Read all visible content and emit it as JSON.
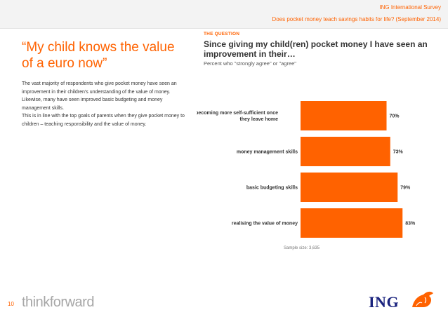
{
  "header": {
    "survey_name": "ING International Survey",
    "survey_question": "Does pocket money teach savings habits for life? (September 2014)"
  },
  "left": {
    "quote": "“My child knows the value of a euro now”",
    "paragraphs": [
      "The vast majority of respondents who give pocket money have seen an improvement in their children’s understanding of the value of money.",
      "Likewise, many have seen improved basic budgeting and money management skills.",
      "This is in line with the top goals of parents when they give pocket money to children – teaching responsibility and the value of money."
    ]
  },
  "question": {
    "label": "THE QUESTION",
    "title": "Since giving my child(ren) pocket money I have seen an improvement in their…",
    "subtitle": "Percent who \"strongly agree\" or \"agree\""
  },
  "chart_data": {
    "type": "bar",
    "orientation": "horizontal",
    "categories": [
      "becoming more self-sufficient once they leave home",
      "money management skills",
      "basic budgeting skills",
      "realising the value of money"
    ],
    "values": [
      70,
      73,
      79,
      83
    ],
    "value_labels": [
      "70%",
      "73%",
      "79%",
      "83%"
    ],
    "unit": "%",
    "xlim": [
      0,
      100
    ],
    "bar_color": "#ff6200",
    "grid": false
  },
  "footer": {
    "sample_size": "Sample size: 3,635",
    "page_number": "10",
    "tagline": "thinkforward",
    "brand": "ING"
  },
  "colors": {
    "accent": "#ff6200",
    "text": "#333333",
    "brand_blue": "#1a237e"
  },
  "icons": {
    "brand_mark": "lion-icon"
  }
}
